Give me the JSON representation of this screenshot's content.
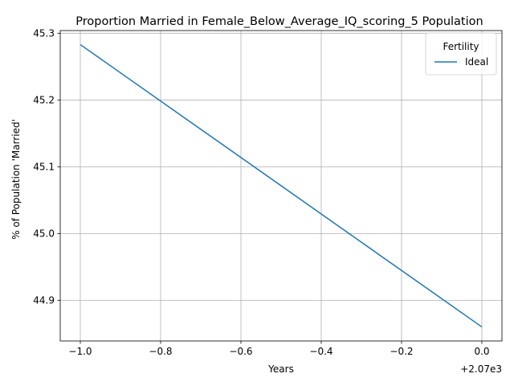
{
  "chart_data": {
    "type": "line",
    "title": "Proportion Married in Female_Below_Average_IQ_scoring_5 Population",
    "xlabel": "Years",
    "ylabel": "% of Population 'Married'",
    "x_offset_label": "+2.07e3",
    "x_tick_labels": [
      "−1.0",
      "−0.8",
      "−0.6",
      "−0.4",
      "−0.2",
      "0.0"
    ],
    "x_ticks": [
      -1.0,
      -0.8,
      -0.6,
      -0.4,
      -0.2,
      0.0
    ],
    "y_tick_labels": [
      "44.9",
      "45.0",
      "45.1",
      "45.2",
      "45.3"
    ],
    "y_ticks": [
      44.9,
      45.0,
      45.1,
      45.2,
      45.3
    ],
    "xlim": [
      -1.05,
      0.05
    ],
    "ylim": [
      44.839,
      45.304
    ],
    "grid": true,
    "legend": {
      "title": "Fertility",
      "placement": "top-right"
    },
    "series": [
      {
        "name": "Ideal",
        "color": "#1f77b4",
        "x": [
          -1.0,
          0.0
        ],
        "y": [
          45.283,
          44.86
        ]
      }
    ]
  }
}
